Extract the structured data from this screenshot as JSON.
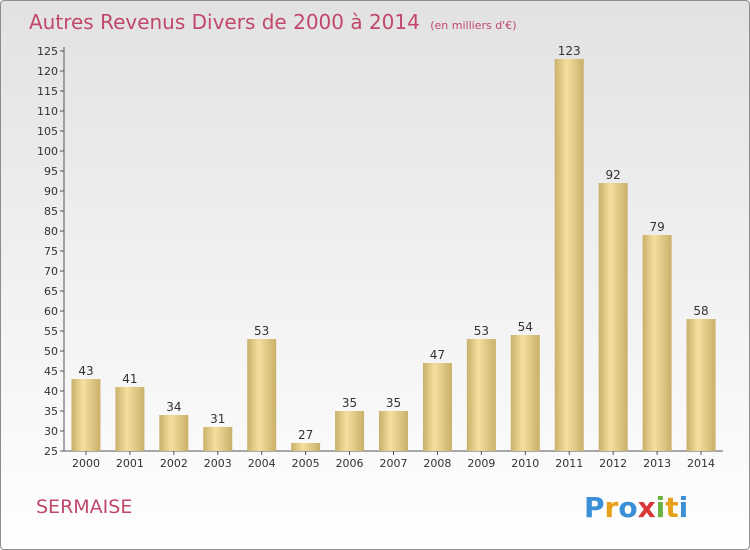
{
  "title": "Autres Revenus Divers de 2000 à 2014",
  "title_unit": "(en milliers d'€)",
  "place": "SERMAISE",
  "logo": {
    "text": "Proxiti",
    "letters": [
      {
        "ch": "P",
        "color": "#3b8fd6"
      },
      {
        "ch": "r",
        "color": "#e8a019"
      },
      {
        "ch": "o",
        "color": "#3b8fd6"
      },
      {
        "ch": "x",
        "color": "#d93838"
      },
      {
        "ch": "i",
        "color": "#6ab33e"
      },
      {
        "ch": "t",
        "color": "#e8a019"
      },
      {
        "ch": "i",
        "color": "#3b8fd6"
      }
    ]
  },
  "colors": {
    "title": "#c1486a",
    "bar_light": "#f5dea0",
    "bar_dark": "#c9b06a",
    "axis": "#555555"
  },
  "chart_data": {
    "type": "bar",
    "title": "Autres Revenus Divers de 2000 à 2014",
    "categories": [
      "2000",
      "2001",
      "2002",
      "2003",
      "2004",
      "2005",
      "2006",
      "2007",
      "2008",
      "2009",
      "2010",
      "2011",
      "2012",
      "2013",
      "2014"
    ],
    "values": [
      43,
      41,
      34,
      31,
      53,
      27,
      35,
      35,
      47,
      53,
      54,
      123,
      92,
      79,
      58
    ],
    "data_labels": [
      "43",
      "41",
      "34",
      "31",
      "53",
      "27",
      "35",
      "35",
      "47",
      "53",
      "54",
      "123",
      "92",
      "79",
      "58"
    ],
    "ylim": [
      25,
      125
    ],
    "yticks": [
      25,
      30,
      35,
      40,
      45,
      50,
      55,
      60,
      65,
      70,
      75,
      80,
      85,
      90,
      95,
      100,
      105,
      110,
      115,
      120,
      125
    ],
    "xlabel": "",
    "ylabel": "",
    "grid": false,
    "legend": "none"
  }
}
